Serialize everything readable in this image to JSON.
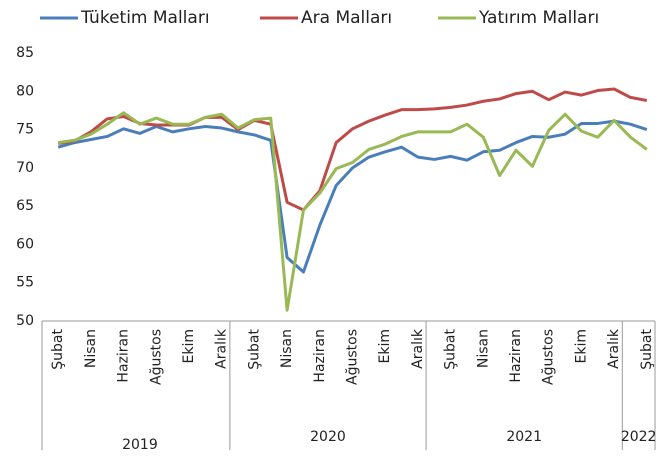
{
  "chart_data": {
    "type": "line",
    "categories": [
      "Şubat",
      null,
      "Nisan",
      null,
      "Haziran",
      null,
      "Ağustos",
      null,
      "Ekim",
      null,
      "Aralık",
      null,
      "Şubat",
      null,
      "Nisan",
      null,
      "Haziran",
      null,
      "Ağustos",
      null,
      "Ekim",
      null,
      "Aralık",
      null,
      "Şubat",
      null,
      "Nisan",
      null,
      "Haziran",
      null,
      "Ağustos",
      null,
      "Ekim",
      null,
      "Aralık",
      null,
      "Şubat"
    ],
    "year_groups": [
      {
        "label": "2019",
        "start": 0,
        "end": 10
      },
      {
        "label": "2020",
        "start": 11,
        "end": 22
      },
      {
        "label": "2021",
        "start": 23,
        "end": 34
      },
      {
        "label": "2022",
        "start": 35,
        "end": 36
      }
    ],
    "series": [
      {
        "name": "Tüketim Malları",
        "color": "#4a7ebb",
        "values": [
          72.7,
          73.3,
          73.7,
          74.1,
          75.1,
          74.5,
          75.4,
          74.7,
          75.1,
          75.4,
          75.2,
          74.7,
          74.3,
          73.6,
          58.3,
          56.4,
          62.5,
          67.7,
          70.0,
          71.4,
          72.1,
          72.7,
          71.4,
          71.1,
          71.5,
          71.0,
          72.1,
          72.3,
          73.3,
          74.1,
          74.0,
          74.4,
          75.8,
          75.8,
          76.1,
          75.7,
          75.0
        ]
      },
      {
        "name": "Ara Malları",
        "color": "#be4b48",
        "values": [
          73.2,
          73.5,
          74.7,
          76.4,
          76.7,
          75.8,
          75.6,
          75.6,
          75.6,
          76.6,
          76.6,
          75.0,
          76.2,
          75.7,
          65.5,
          64.5,
          67.0,
          73.3,
          75.1,
          76.1,
          76.9,
          77.6,
          77.6,
          77.7,
          77.9,
          78.2,
          78.7,
          79.0,
          79.7,
          80.0,
          78.9,
          79.9,
          79.5,
          80.1,
          80.3,
          79.2,
          78.8
        ]
      },
      {
        "name": "Yatırım Malları",
        "color": "#98b954",
        "values": [
          73.3,
          73.6,
          74.4,
          75.7,
          77.2,
          75.7,
          76.5,
          75.7,
          75.7,
          76.6,
          77.0,
          75.2,
          76.3,
          76.5,
          51.4,
          64.5,
          66.7,
          69.9,
          70.7,
          72.4,
          73.1,
          74.1,
          74.7,
          74.7,
          74.7,
          75.7,
          74.0,
          69.0,
          72.3,
          70.2,
          74.9,
          77.0,
          74.8,
          74.0,
          76.2,
          74.0,
          72.4
        ]
      }
    ],
    "ylim": [
      50,
      85
    ],
    "yticks": [
      50,
      55,
      60,
      65,
      70,
      75,
      80,
      85
    ],
    "grid": false
  }
}
